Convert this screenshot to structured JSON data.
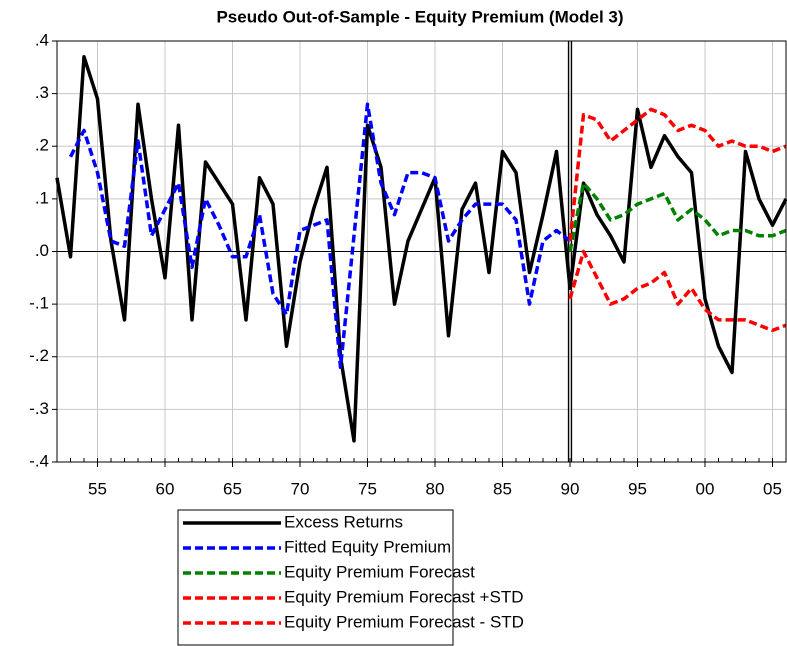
{
  "chart_data": {
    "type": "line",
    "title": "Pseudo Out-of-Sample - Equity Premium (Model 3)",
    "x": [
      1952,
      1953,
      1954,
      1955,
      1956,
      1957,
      1958,
      1959,
      1960,
      1961,
      1962,
      1963,
      1964,
      1965,
      1966,
      1967,
      1968,
      1969,
      1970,
      1971,
      1972,
      1973,
      1974,
      1975,
      1976,
      1977,
      1978,
      1979,
      1980,
      1981,
      1982,
      1983,
      1984,
      1985,
      1986,
      1987,
      1988,
      1989,
      1990,
      1991,
      1992,
      1993,
      1994,
      1995,
      1996,
      1997,
      1998,
      1999,
      2000,
      2001,
      2002,
      2003,
      2004,
      2005,
      2006
    ],
    "series": [
      {
        "name": "Excess Returns",
        "color": "#000000",
        "style": "solid",
        "values": [
          0.14,
          -0.01,
          0.37,
          0.29,
          0.02,
          -0.13,
          0.28,
          0.1,
          -0.05,
          0.24,
          -0.13,
          0.17,
          0.13,
          0.09,
          -0.13,
          0.14,
          0.09,
          -0.18,
          -0.02,
          0.08,
          0.16,
          -0.2,
          -0.36,
          0.24,
          0.16,
          -0.1,
          0.02,
          0.08,
          0.14,
          -0.16,
          0.08,
          0.13,
          -0.04,
          0.19,
          0.15,
          -0.04,
          0.07,
          0.19,
          -0.07,
          0.13,
          0.07,
          0.03,
          -0.02,
          0.27,
          0.16,
          0.22,
          0.18,
          0.15,
          -0.09,
          -0.18,
          -0.23,
          0.19,
          0.1,
          0.05,
          0.1
        ]
      },
      {
        "name": "Fitted Equity Premium",
        "color": "#0000ff",
        "style": "dash",
        "values": [
          null,
          0.18,
          0.23,
          0.15,
          0.02,
          0.01,
          0.21,
          0.03,
          0.08,
          0.13,
          -0.03,
          0.1,
          0.05,
          -0.01,
          -0.01,
          0.07,
          -0.08,
          -0.12,
          0.04,
          0.05,
          0.06,
          -0.22,
          0.03,
          0.28,
          0.13,
          0.07,
          0.15,
          0.15,
          0.14,
          0.02,
          0.06,
          0.09,
          0.09,
          0.09,
          0.06,
          -0.1,
          0.02,
          0.04,
          0.02,
          null,
          null,
          null,
          null,
          null,
          null,
          null,
          null,
          null,
          null,
          null,
          null,
          null,
          null,
          null,
          null
        ]
      },
      {
        "name": "Equity Premium Forecast",
        "color": "#008000",
        "style": "dash",
        "values": [
          null,
          null,
          null,
          null,
          null,
          null,
          null,
          null,
          null,
          null,
          null,
          null,
          null,
          null,
          null,
          null,
          null,
          null,
          null,
          null,
          null,
          null,
          null,
          null,
          null,
          null,
          null,
          null,
          null,
          null,
          null,
          null,
          null,
          null,
          null,
          null,
          null,
          null,
          0.0,
          0.13,
          0.1,
          0.06,
          0.07,
          0.09,
          0.1,
          0.11,
          0.06,
          0.08,
          0.06,
          0.03,
          0.04,
          0.04,
          0.03,
          0.03,
          0.04
        ]
      },
      {
        "name": "Equity Premium Forecast +STD",
        "color": "#ff0000",
        "style": "dash",
        "values": [
          null,
          null,
          null,
          null,
          null,
          null,
          null,
          null,
          null,
          null,
          null,
          null,
          null,
          null,
          null,
          null,
          null,
          null,
          null,
          null,
          null,
          null,
          null,
          null,
          null,
          null,
          null,
          null,
          null,
          null,
          null,
          null,
          null,
          null,
          null,
          null,
          null,
          null,
          0.02,
          0.26,
          0.25,
          0.21,
          0.23,
          0.25,
          0.27,
          0.26,
          0.23,
          0.24,
          0.23,
          0.2,
          0.21,
          0.2,
          0.2,
          0.19,
          0.2
        ]
      },
      {
        "name": "Equity Premium Forecast - STD",
        "color": "#ff0000",
        "style": "dash",
        "values": [
          null,
          null,
          null,
          null,
          null,
          null,
          null,
          null,
          null,
          null,
          null,
          null,
          null,
          null,
          null,
          null,
          null,
          null,
          null,
          null,
          null,
          null,
          null,
          null,
          null,
          null,
          null,
          null,
          null,
          null,
          null,
          null,
          null,
          null,
          null,
          null,
          null,
          null,
          -0.09,
          0.0,
          -0.05,
          -0.1,
          -0.09,
          -0.07,
          -0.06,
          -0.04,
          -0.1,
          -0.07,
          -0.11,
          -0.13,
          -0.13,
          -0.13,
          -0.14,
          -0.15,
          -0.14
        ]
      }
    ],
    "xlim": [
      1952,
      2006
    ],
    "xticks": [
      {
        "value": 1955,
        "label": "55"
      },
      {
        "value": 1960,
        "label": "60"
      },
      {
        "value": 1965,
        "label": "65"
      },
      {
        "value": 1970,
        "label": "70"
      },
      {
        "value": 1975,
        "label": "75"
      },
      {
        "value": 1980,
        "label": "80"
      },
      {
        "value": 1985,
        "label": "85"
      },
      {
        "value": 1990,
        "label": "90"
      },
      {
        "value": 1995,
        "label": "95"
      },
      {
        "value": 2000,
        "label": "00"
      },
      {
        "value": 2005,
        "label": "05"
      }
    ],
    "ylim": [
      -0.4,
      0.4
    ],
    "yticks": [
      {
        "value": -0.4,
        "label": "-.4"
      },
      {
        "value": -0.3,
        "label": "-.3"
      },
      {
        "value": -0.2,
        "label": "-.2"
      },
      {
        "value": -0.1,
        "label": "-.1"
      },
      {
        "value": 0,
        "label": ".0"
      },
      {
        "value": 0.1,
        "label": ".1"
      },
      {
        "value": 0.2,
        "label": ".2"
      },
      {
        "value": 0.3,
        "label": ".3"
      },
      {
        "value": 0.4,
        "label": ".4"
      }
    ],
    "grid": true,
    "vline": 1990
  }
}
